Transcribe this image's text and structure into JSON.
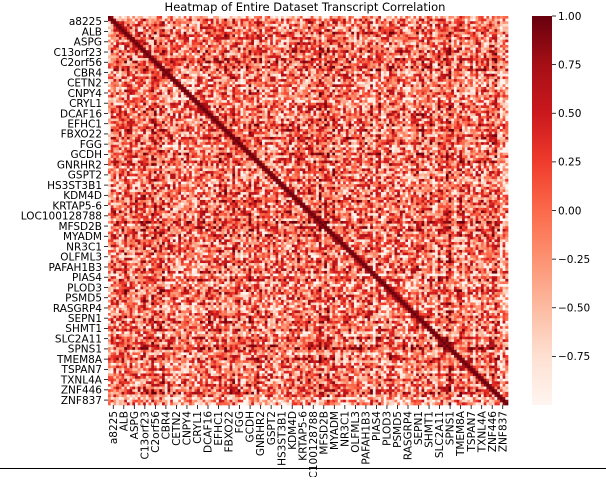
{
  "chart_data": {
    "type": "heatmap",
    "title": "Heatmap of Entire Dataset Transcript Correlation",
    "xlabel": "",
    "ylabel": "",
    "y_tick_labels": [
      "a8225",
      "ALB",
      "ASPG",
      "C13orf23",
      "C2orf56",
      "CBR4",
      "CETN2",
      "CNPY4",
      "CRYL1",
      "DCAF16",
      "EFHC1",
      "FBXO22",
      "FGG",
      "GCDH",
      "GNRHR2",
      "GSPT2",
      "HS3ST3B1",
      "KDM4D",
      "KRTAP5-6",
      "LOC100128788",
      "MFSD2B",
      "MYADM",
      "NR3C1",
      "OLFML3",
      "PAFAH1B3",
      "PIAS4",
      "PLOD3",
      "PSMD5",
      "RASGRP4",
      "SEPN1",
      "SHMT1",
      "SLC2A11",
      "SPNS1",
      "TMEM8A",
      "TSPAN7",
      "TXNL4A",
      "ZNF446",
      "ZNF837"
    ],
    "x_tick_labels": [
      "a8225",
      "ALB",
      "ASPG",
      "C13orf23",
      "C2orf56",
      "CBR4",
      "CETN2",
      "CNPY4",
      "CRYL1",
      "DCAF16",
      "EFHC1",
      "FBXO22",
      "FGG",
      "GCDH",
      "GNRHR2",
      "GSPT2",
      "HS3ST3B1",
      "KDM4D",
      "KRTAP5-6",
      "LOC100128788",
      "MFSD2B",
      "MYADM",
      "NR3C1",
      "OLFML3",
      "PAFAH1B3",
      "PIAS4",
      "PLOD3",
      "PSMD5",
      "RASGRP4",
      "SEPN1",
      "SHMT1",
      "SLC2A11",
      "SPNS1",
      "TMEM8A",
      "TSPAN7",
      "TXNL4A",
      "ZNF446",
      "ZNF837"
    ],
    "colorbar": {
      "colormap": "Reds",
      "vmin": -1.0,
      "vmax": 1.0,
      "ticks": [
        1.0,
        0.75,
        0.5,
        0.25,
        0.0,
        -0.25,
        -0.5,
        -0.75
      ],
      "tick_labels": [
        "1.00",
        "0.75",
        "0.50",
        "0.25",
        "0.00",
        "−0.25",
        "−0.50",
        "−0.75"
      ]
    },
    "colors": {
      "low": "#fff5f0",
      "high": "#67000d"
    },
    "grid": false
  }
}
